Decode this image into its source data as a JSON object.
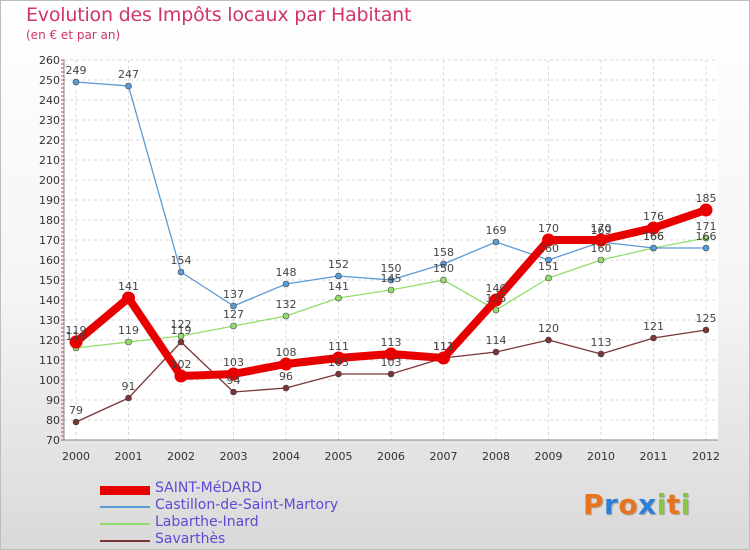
{
  "chart_data": {
    "type": "line",
    "title": "Evolution des Impôts locaux par Habitant",
    "subtitle": "(en € et par an)",
    "xlabel": "",
    "ylabel": "",
    "x": [
      2000,
      2001,
      2002,
      2003,
      2004,
      2005,
      2006,
      2007,
      2008,
      2009,
      2010,
      2011,
      2012
    ],
    "ylim": [
      70,
      260
    ],
    "ytick_step": 10,
    "grid": true,
    "series": [
      {
        "name": "SAINT-MéDARD",
        "color": "#e80000",
        "values": [
          119,
          141,
          102,
          103,
          108,
          111,
          113,
          111,
          140,
          170,
          170,
          176,
          185
        ]
      },
      {
        "name": "Castillon-de-Saint-Martory",
        "color": "#5b9bd5",
        "values": [
          249,
          247,
          154,
          137,
          148,
          152,
          150,
          158,
          169,
          160,
          169,
          166,
          166
        ]
      },
      {
        "name": "Labarthe-Inard",
        "color": "#93de6b",
        "values": [
          116,
          119,
          122,
          127,
          132,
          141,
          145,
          150,
          135,
          151,
          160,
          166,
          171
        ]
      },
      {
        "name": "Savarthès",
        "color": "#7a3535",
        "values": [
          79,
          91,
          119,
          94,
          96,
          103,
          103,
          111,
          114,
          120,
          113,
          121,
          125
        ]
      }
    ]
  },
  "logo": {
    "letters": [
      "P",
      "r",
      "o",
      "x",
      "i",
      "t",
      "i"
    ],
    "colors": [
      "#e8731e",
      "#2e7fd6",
      "#e8731e",
      "#2e7fd6",
      "#89c540",
      "#e8731e",
      "#89c540"
    ]
  }
}
